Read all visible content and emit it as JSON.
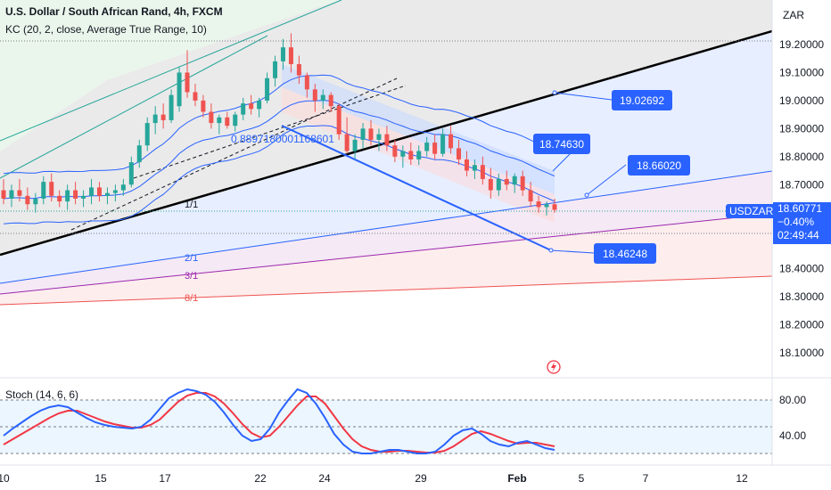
{
  "header": {
    "symbol_title": "U.S. Dollar / South African Rand, 4h, FXCM",
    "indicator_title": "KC (20, 2, close, Average True Range, 10)",
    "currency": "ZAR"
  },
  "price_axis": {
    "ticks": [
      "19.20000",
      "19.10000",
      "19.00000",
      "18.90000",
      "18.80000",
      "18.70000",
      "18.40000",
      "18.30000",
      "18.20000",
      "18.10000"
    ]
  },
  "last_price": {
    "symbol": "USDZAR",
    "price": "18.60771",
    "change": "−0.40%",
    "countdown": "02:49:44",
    "color": "#2962ff"
  },
  "annotations": {
    "price_labels": [
      "19.02692",
      "18.74630",
      "18.66020",
      "18.46248"
    ],
    "fib_value": "0.8897180001168601",
    "fan_labels": [
      "1/1",
      "2/1",
      "3/1",
      "8/1"
    ]
  },
  "stoch": {
    "title": "Stoch (14, 6, 6)",
    "axis_ticks": [
      "80.00",
      "40.00"
    ]
  },
  "time_axis": {
    "ticks": [
      "10",
      "15",
      "17",
      "22",
      "24",
      "29",
      "Feb",
      "5",
      "7",
      "12"
    ]
  },
  "colors": {
    "up": "#26a69a",
    "down": "#ef5350",
    "keltner": "#2962ff",
    "stoch_k": "#2962ff",
    "stoch_d": "#f23645"
  },
  "chart_data": [
    {
      "type": "candlestick",
      "title": "U.S. Dollar / South African Rand, 4h, FXCM",
      "y_axis_ticks": [
        19.2,
        19.1,
        19.0,
        18.9,
        18.8,
        18.7,
        18.4,
        18.3,
        18.2,
        18.1
      ],
      "x_axis_ticks": [
        "10",
        "15",
        "17",
        "22",
        "24",
        "29",
        "Feb",
        "5",
        "7",
        "12"
      ],
      "ohlc": [
        [
          18.68,
          18.72,
          18.63,
          18.65
        ],
        [
          18.65,
          18.7,
          18.62,
          18.68
        ],
        [
          18.68,
          18.72,
          18.64,
          18.66
        ],
        [
          18.66,
          18.69,
          18.61,
          18.63
        ],
        [
          18.63,
          18.67,
          18.6,
          18.65
        ],
        [
          18.65,
          18.73,
          18.63,
          18.71
        ],
        [
          18.71,
          18.74,
          18.64,
          18.66
        ],
        [
          18.66,
          18.68,
          18.62,
          18.64
        ],
        [
          18.64,
          18.7,
          18.61,
          18.68
        ],
        [
          18.68,
          18.71,
          18.63,
          18.65
        ],
        [
          18.65,
          18.68,
          18.62,
          18.66
        ],
        [
          18.66,
          18.72,
          18.63,
          18.69
        ],
        [
          18.69,
          18.71,
          18.64,
          18.66
        ],
        [
          18.66,
          18.69,
          18.63,
          18.67
        ],
        [
          18.67,
          18.7,
          18.64,
          18.68
        ],
        [
          18.68,
          18.72,
          18.66,
          18.7
        ],
        [
          18.7,
          18.8,
          18.69,
          18.78
        ],
        [
          18.78,
          18.86,
          18.76,
          18.84
        ],
        [
          18.84,
          18.94,
          18.82,
          18.92
        ],
        [
          18.92,
          18.98,
          18.88,
          18.95
        ],
        [
          18.95,
          18.99,
          18.9,
          18.93
        ],
        [
          18.93,
          19.04,
          18.92,
          19.02
        ],
        [
          18.98,
          19.12,
          18.96,
          19.1
        ],
        [
          19.1,
          19.18,
          19.01,
          19.03
        ],
        [
          19.03,
          19.06,
          18.98,
          19.0
        ],
        [
          19.0,
          19.02,
          18.94,
          18.96
        ],
        [
          18.96,
          18.99,
          18.9,
          18.92
        ],
        [
          18.92,
          18.95,
          18.88,
          18.94
        ],
        [
          18.94,
          18.96,
          18.9,
          18.91
        ],
        [
          18.91,
          18.96,
          18.89,
          18.95
        ],
        [
          18.95,
          19.01,
          18.93,
          18.99
        ],
        [
          18.99,
          19.02,
          18.95,
          18.97
        ],
        [
          18.97,
          19.01,
          18.94,
          19.0
        ],
        [
          19.0,
          19.1,
          18.99,
          19.08
        ],
        [
          19.08,
          19.16,
          19.05,
          19.14
        ],
        [
          19.14,
          19.22,
          19.11,
          19.19
        ],
        [
          19.19,
          19.24,
          19.1,
          19.13
        ],
        [
          19.13,
          19.16,
          19.06,
          19.09
        ],
        [
          19.09,
          19.1,
          19.01,
          19.04
        ],
        [
          19.04,
          19.06,
          18.96,
          19.0
        ],
        [
          19.0,
          19.04,
          18.97,
          19.02
        ],
        [
          19.02,
          19.03,
          18.96,
          18.98
        ],
        [
          18.98,
          18.99,
          18.86,
          18.88
        ],
        [
          18.88,
          18.94,
          18.81,
          18.82
        ],
        [
          18.82,
          18.88,
          18.79,
          18.86
        ],
        [
          18.86,
          18.92,
          18.83,
          18.9
        ],
        [
          18.9,
          18.93,
          18.84,
          18.86
        ],
        [
          18.86,
          18.9,
          18.82,
          18.88
        ],
        [
          18.88,
          18.91,
          18.82,
          18.84
        ],
        [
          18.84,
          18.86,
          18.78,
          18.8
        ],
        [
          18.8,
          18.84,
          18.76,
          18.82
        ],
        [
          18.82,
          18.85,
          18.77,
          18.79
        ],
        [
          18.79,
          18.84,
          18.77,
          18.82
        ],
        [
          18.82,
          18.87,
          18.8,
          18.85
        ],
        [
          18.85,
          18.88,
          18.79,
          18.81
        ],
        [
          18.81,
          18.9,
          18.8,
          18.88
        ],
        [
          18.88,
          18.91,
          18.81,
          18.83
        ],
        [
          18.83,
          18.86,
          18.77,
          18.79
        ],
        [
          18.79,
          18.82,
          18.73,
          18.75
        ],
        [
          18.75,
          18.79,
          18.72,
          18.77
        ],
        [
          18.77,
          18.8,
          18.7,
          18.72
        ],
        [
          18.72,
          18.76,
          18.65,
          18.68
        ],
        [
          18.68,
          18.74,
          18.66,
          18.72
        ],
        [
          18.72,
          18.75,
          18.68,
          18.7
        ],
        [
          18.7,
          18.74,
          18.67,
          18.73
        ],
        [
          18.73,
          18.75,
          18.66,
          18.68
        ],
        [
          18.68,
          18.71,
          18.62,
          18.64
        ],
        [
          18.64,
          18.66,
          18.6,
          18.62
        ],
        [
          18.62,
          18.64,
          18.59,
          18.63
        ],
        [
          18.63,
          18.65,
          18.6,
          18.61
        ]
      ]
    },
    {
      "type": "line",
      "title": "Stoch (14, 6, 6)",
      "y_axis_ticks": [
        80,
        40
      ],
      "series": [
        {
          "name": "%K",
          "values": [
            40,
            48,
            55,
            62,
            68,
            72,
            74,
            72,
            66,
            60,
            55,
            52,
            50,
            49,
            48,
            50,
            58,
            70,
            82,
            88,
            92,
            90,
            86,
            78,
            66,
            52,
            40,
            34,
            36,
            48,
            66,
            80,
            92,
            88,
            76,
            60,
            42,
            30,
            22,
            20,
            20,
            22,
            24,
            24,
            22,
            20,
            20,
            22,
            30,
            40,
            46,
            48,
            42,
            34,
            30,
            28,
            32,
            34,
            30,
            26,
            24
          ]
        },
        {
          "name": "%D",
          "values": [
            30,
            36,
            42,
            48,
            54,
            60,
            65,
            68,
            68,
            64,
            60,
            56,
            53,
            51,
            49,
            49,
            52,
            58,
            68,
            78,
            85,
            88,
            88,
            84,
            76,
            65,
            53,
            43,
            38,
            40,
            50,
            62,
            74,
            84,
            84,
            76,
            62,
            48,
            36,
            28,
            24,
            22,
            22,
            23,
            23,
            22,
            21,
            21,
            23,
            28,
            35,
            42,
            45,
            42,
            38,
            34,
            31,
            32,
            32,
            30,
            28
          ]
        }
      ]
    }
  ]
}
